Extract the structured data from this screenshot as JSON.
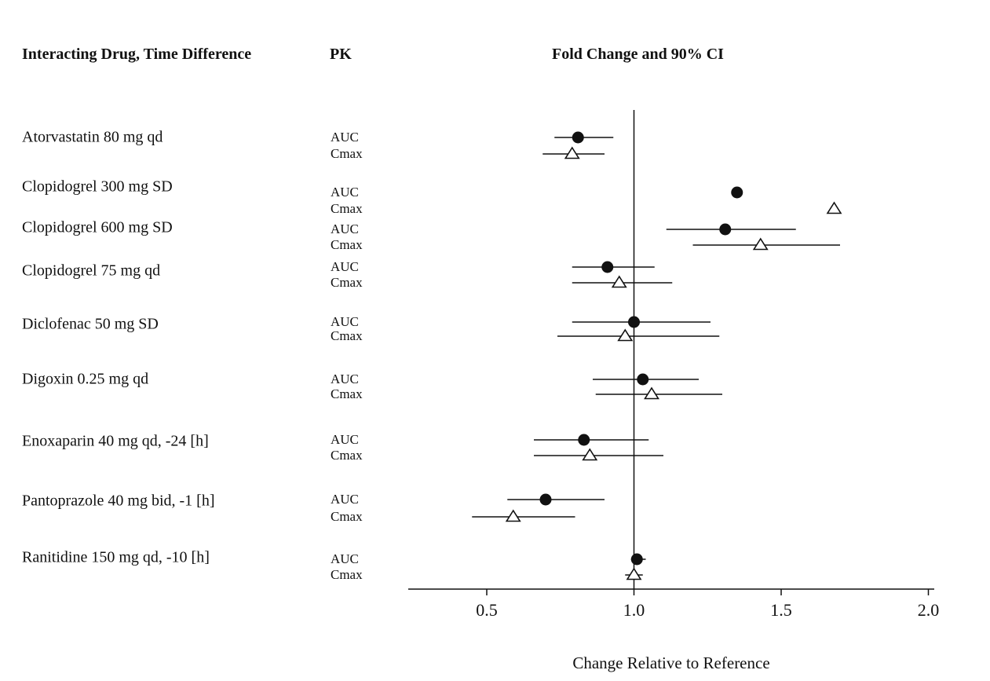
{
  "header": {
    "col1": "Interacting Drug, Time Difference",
    "col2": "PK",
    "col3": "Fold Change and 90% CI"
  },
  "chart_data": {
    "type": "scatter",
    "subtype": "forest-plot",
    "xlabel": "Change Relative to Reference",
    "x_ticks": [
      0.5,
      1.0,
      1.5,
      2.0
    ],
    "xlim": [
      0.23,
      2.02
    ],
    "reference_line": 1.0,
    "grid": "off",
    "marker_legend": {
      "AUC": "filled-circle",
      "Cmax": "open-triangle"
    },
    "rows": [
      {
        "drug": "Atorvastatin 80 mg qd",
        "measures": [
          {
            "pk": "AUC",
            "marker": "filled-circle",
            "est": 0.81,
            "lo": 0.73,
            "hi": 0.93
          },
          {
            "pk": "Cmax",
            "marker": "open-triangle",
            "est": 0.79,
            "lo": 0.69,
            "hi": 0.9
          }
        ]
      },
      {
        "drug": "Clopidogrel 300 mg SD",
        "measures": [
          {
            "pk": "AUC",
            "marker": "filled-circle",
            "est": 1.35,
            "lo": null,
            "hi": null
          },
          {
            "pk": "Cmax",
            "marker": "open-triangle",
            "est": 1.68,
            "lo": null,
            "hi": null
          }
        ]
      },
      {
        "drug": "Clopidogrel 600 mg SD",
        "measures": [
          {
            "pk": "AUC",
            "marker": "filled-circle",
            "est": 1.31,
            "lo": 1.11,
            "hi": 1.55
          },
          {
            "pk": "Cmax",
            "marker": "open-triangle",
            "est": 1.43,
            "lo": 1.2,
            "hi": 1.7
          }
        ]
      },
      {
        "drug": "Clopidogrel 75 mg qd",
        "measures": [
          {
            "pk": "AUC",
            "marker": "filled-circle",
            "est": 0.91,
            "lo": 0.79,
            "hi": 1.07
          },
          {
            "pk": "Cmax",
            "marker": "open-triangle",
            "est": 0.95,
            "lo": 0.79,
            "hi": 1.13
          }
        ]
      },
      {
        "drug": "Diclofenac 50 mg SD",
        "measures": [
          {
            "pk": "AUC",
            "marker": "filled-circle",
            "est": 1.0,
            "lo": 0.79,
            "hi": 1.26
          },
          {
            "pk": "Cmax",
            "marker": "open-triangle",
            "est": 0.97,
            "lo": 0.74,
            "hi": 1.29
          }
        ]
      },
      {
        "drug": "Digoxin 0.25 mg qd",
        "measures": [
          {
            "pk": "AUC",
            "marker": "filled-circle",
            "est": 1.03,
            "lo": 0.86,
            "hi": 1.22
          },
          {
            "pk": "Cmax",
            "marker": "open-triangle",
            "est": 1.06,
            "lo": 0.87,
            "hi": 1.3
          }
        ]
      },
      {
        "drug": "Enoxaparin 40 mg qd, -24 [h]",
        "measures": [
          {
            "pk": "AUC",
            "marker": "filled-circle",
            "est": 0.83,
            "lo": 0.66,
            "hi": 1.05
          },
          {
            "pk": "Cmax",
            "marker": "open-triangle",
            "est": 0.85,
            "lo": 0.66,
            "hi": 1.1
          }
        ]
      },
      {
        "drug": "Pantoprazole 40 mg bid, -1 [h]",
        "measures": [
          {
            "pk": "AUC",
            "marker": "filled-circle",
            "est": 0.7,
            "lo": 0.57,
            "hi": 0.9
          },
          {
            "pk": "Cmax",
            "marker": "open-triangle",
            "est": 0.59,
            "lo": 0.45,
            "hi": 0.8
          }
        ]
      },
      {
        "drug": "Ranitidine 150 mg qd, -10 [h]",
        "measures": [
          {
            "pk": "AUC",
            "marker": "filled-circle",
            "est": 1.01,
            "lo": 0.99,
            "hi": 1.04
          },
          {
            "pk": "Cmax",
            "marker": "open-triangle",
            "est": 1.0,
            "lo": 0.97,
            "hi": 1.03
          }
        ]
      }
    ],
    "colors": {
      "ink": "#111111",
      "background": "#ffffff"
    }
  }
}
